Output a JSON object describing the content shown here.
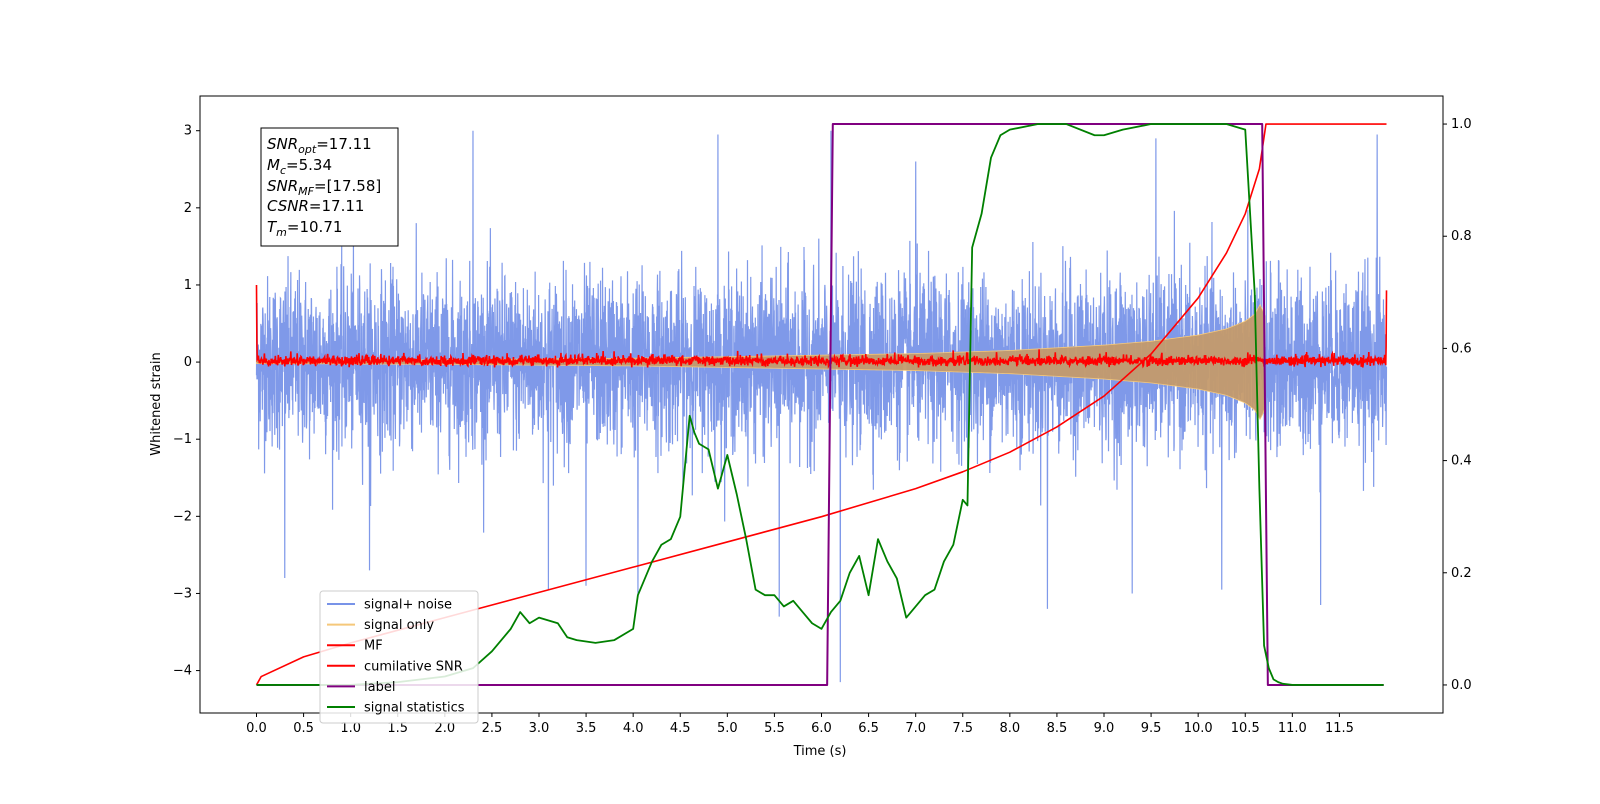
{
  "chart_data": {
    "type": "line",
    "xlabel": "Time (s)",
    "ylabel": "Whitened strain",
    "xlim": [
      -0.6,
      12.6
    ],
    "ylim": [
      -4.55,
      3.45
    ],
    "ylim_right": [
      -0.05,
      1.05
    ],
    "x_ticks": [
      "0.0",
      "0.5",
      "1.0",
      "1.5",
      "2.0",
      "2.5",
      "3.0",
      "3.5",
      "4.0",
      "4.5",
      "5.0",
      "5.5",
      "6.0",
      "6.5",
      "7.0",
      "7.5",
      "8.0",
      "8.5",
      "9.0",
      "9.5",
      "10.0",
      "10.5",
      "11.0",
      "11.5"
    ],
    "y_ticks": [
      "3",
      "2",
      "1",
      "0",
      "−1",
      "−2",
      "−3",
      "−4"
    ],
    "y_ticks_right": [
      "1.0",
      "0.8",
      "0.6",
      "0.4",
      "0.2",
      "0.0"
    ],
    "stats": {
      "snr_opt": {
        "base": "SNR",
        "sub": "opt",
        "value": "=17.11"
      },
      "mc": {
        "base": "M",
        "sub": "c",
        "value": "=5.34"
      },
      "snr_mf": {
        "base": "SNR",
        "sub": "MF",
        "value": "=[17.58]"
      },
      "csnr": {
        "base": "CSNR",
        "sub": "",
        "value": "=17.11"
      },
      "tm": {
        "base": "T",
        "sub": "m",
        "value": "=10.71"
      }
    },
    "legend": {
      "placement": "lower-left",
      "entries": [
        {
          "label": "signal+ noise",
          "color": "#7893e8"
        },
        {
          "label": "signal only",
          "color": "#f5c87a"
        },
        {
          "label": "MF",
          "color": "#ff0000"
        },
        {
          "label": "cumilative SNR",
          "color": "#ff0000"
        },
        {
          "label": "label",
          "color": "#800080"
        },
        {
          "label": "signal statistics",
          "color": "#008000"
        }
      ]
    },
    "series": [
      {
        "name": "signal+ noise",
        "axis": "left",
        "color": "#7893e8",
        "kind": "noise",
        "x_range": [
          0.0,
          12.0
        ],
        "typical_range": [
          -1.3,
          1.3
        ],
        "extremes": [
          -4.15,
          3.0
        ]
      },
      {
        "name": "signal only",
        "axis": "left",
        "color": "#f5c87a",
        "kind": "chirp_envelope",
        "x": [
          0.0,
          2.0,
          4.0,
          6.0,
          7.0,
          8.0,
          9.0,
          9.5,
          10.0,
          10.3,
          10.5,
          10.6,
          10.66,
          10.71
        ],
        "envelope": [
          0.02,
          0.03,
          0.05,
          0.09,
          0.11,
          0.15,
          0.22,
          0.27,
          0.35,
          0.43,
          0.53,
          0.62,
          0.75,
          0.6
        ]
      },
      {
        "name": "MF",
        "axis": "left",
        "color": "#ff0000",
        "kind": "noise",
        "x_range": [
          0.0,
          12.0
        ],
        "typical_range": [
          -0.07,
          0.1
        ],
        "start_value": 1.0,
        "end_value": 0.93
      },
      {
        "name": "cumilative SNR",
        "axis": "right",
        "color": "#ff0000",
        "x": [
          0.0,
          0.05,
          0.5,
          1.0,
          2.0,
          3.0,
          4.0,
          5.0,
          6.0,
          7.0,
          7.5,
          8.0,
          8.5,
          9.0,
          9.5,
          10.0,
          10.3,
          10.5,
          10.65,
          10.72,
          12.0
        ],
        "y": [
          0.0,
          0.015,
          0.05,
          0.075,
          0.12,
          0.165,
          0.21,
          0.255,
          0.3,
          0.35,
          0.38,
          0.415,
          0.46,
          0.515,
          0.59,
          0.69,
          0.77,
          0.84,
          0.92,
          1.0,
          1.0
        ]
      },
      {
        "name": "label",
        "axis": "right",
        "color": "#800080",
        "x": [
          0.0,
          6.06,
          6.12,
          10.68,
          10.74,
          11.97
        ],
        "y": [
          0.0,
          0.0,
          1.0,
          1.0,
          0.0,
          0.0
        ]
      },
      {
        "name": "signal statistics",
        "axis": "right",
        "color": "#008000",
        "x": [
          0.0,
          0.5,
          1.0,
          1.5,
          2.0,
          2.3,
          2.5,
          2.7,
          2.8,
          2.9,
          3.0,
          3.2,
          3.3,
          3.4,
          3.6,
          3.8,
          4.0,
          4.05,
          4.2,
          4.3,
          4.4,
          4.5,
          4.6,
          4.65,
          4.7,
          4.8,
          4.9,
          5.0,
          5.1,
          5.2,
          5.3,
          5.4,
          5.5,
          5.6,
          5.7,
          5.8,
          5.9,
          6.0,
          6.1,
          6.2,
          6.3,
          6.4,
          6.5,
          6.6,
          6.7,
          6.8,
          6.9,
          7.0,
          7.1,
          7.2,
          7.3,
          7.4,
          7.5,
          7.55,
          7.6,
          7.7,
          7.8,
          7.9,
          8.0,
          8.3,
          8.6,
          8.9,
          9.0,
          9.2,
          9.5,
          10.0,
          10.3,
          10.5,
          10.6,
          10.65,
          10.7,
          10.75,
          10.8,
          10.85,
          10.9,
          11.0,
          11.97
        ],
        "y": [
          0.0,
          0.0,
          0.0,
          0.005,
          0.015,
          0.03,
          0.06,
          0.1,
          0.13,
          0.11,
          0.12,
          0.11,
          0.085,
          0.08,
          0.075,
          0.08,
          0.1,
          0.16,
          0.22,
          0.25,
          0.26,
          0.3,
          0.48,
          0.45,
          0.43,
          0.42,
          0.35,
          0.41,
          0.34,
          0.26,
          0.17,
          0.16,
          0.16,
          0.14,
          0.15,
          0.13,
          0.11,
          0.1,
          0.13,
          0.15,
          0.2,
          0.23,
          0.16,
          0.26,
          0.22,
          0.19,
          0.12,
          0.14,
          0.16,
          0.17,
          0.22,
          0.25,
          0.33,
          0.32,
          0.78,
          0.84,
          0.94,
          0.98,
          0.99,
          1.0,
          1.0,
          0.98,
          0.98,
          0.99,
          1.0,
          1.0,
          1.0,
          0.99,
          0.7,
          0.35,
          0.07,
          0.03,
          0.01,
          0.005,
          0.002,
          0.0,
          0.0
        ]
      }
    ]
  }
}
